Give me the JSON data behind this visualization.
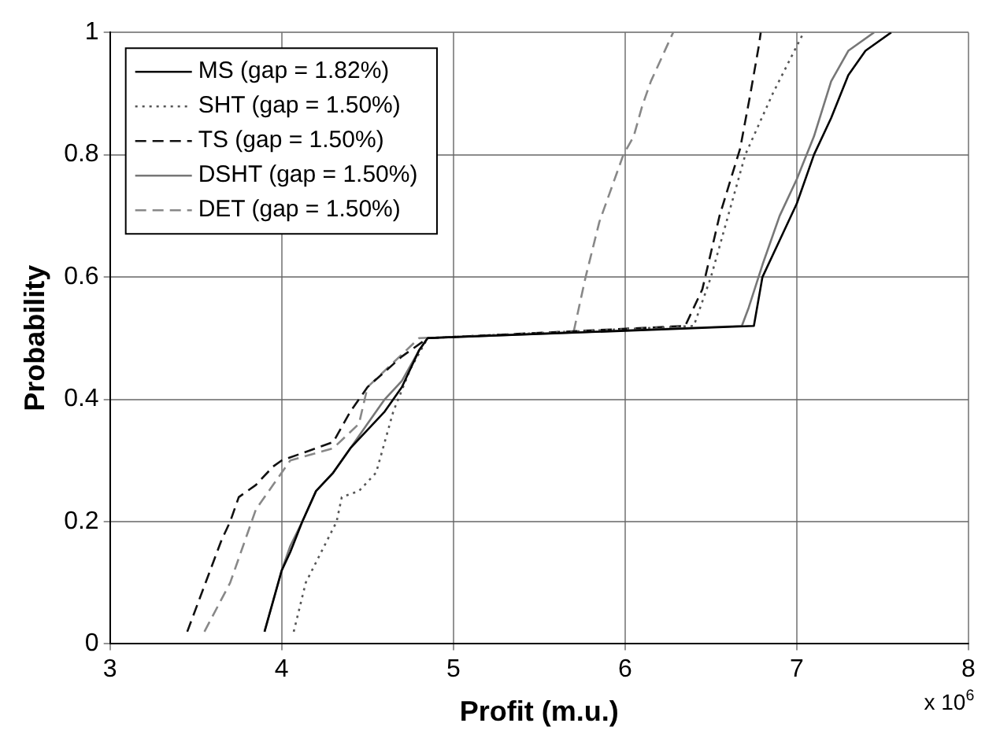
{
  "chart_data": {
    "type": "line",
    "xlabel": "Profit (m.u.)",
    "ylabel": "Probability",
    "annotations": [
      "x 10$^{6}$"
    ],
    "xlim": [
      3,
      8
    ],
    "xticks": [
      3,
      4,
      5,
      6,
      7,
      8
    ],
    "ylim": [
      0,
      1
    ],
    "yticks": [
      0,
      0.2,
      0.4,
      0.6,
      0.8,
      1
    ],
    "grid": true,
    "legend": "top left",
    "marker": "none",
    "series": [
      {
        "name": "MS (gap = 1.82%)",
        "color": "#000000",
        "line_style": "solid",
        "x": [
          3.9,
          4.0,
          4.05,
          4.12,
          4.2,
          4.3,
          4.4,
          4.5,
          4.6,
          4.7,
          4.8,
          4.85,
          6.75,
          6.8,
          6.9,
          7.0,
          7.1,
          7.2,
          7.3,
          7.4,
          7.55
        ],
        "values": [
          0.02,
          0.12,
          0.15,
          0.2,
          0.25,
          0.28,
          0.32,
          0.35,
          0.38,
          0.42,
          0.48,
          0.5,
          0.52,
          0.6,
          0.66,
          0.72,
          0.8,
          0.86,
          0.93,
          0.97,
          1
        ]
      },
      {
        "name": "SHT (gap = 1.50%)",
        "color": "#555555",
        "line_style": "dotted",
        "x": [
          4.07,
          4.14,
          4.32,
          4.35,
          4.45,
          4.55,
          4.6,
          4.65,
          4.75,
          4.85,
          6.4,
          6.5,
          6.6,
          6.7,
          6.86,
          7.04
        ],
        "values": [
          0.02,
          0.1,
          0.2,
          0.24,
          0.25,
          0.28,
          0.33,
          0.38,
          0.45,
          0.5,
          0.52,
          0.6,
          0.7,
          0.8,
          0.9,
          1
        ]
      },
      {
        "name": "TS (gap = 1.50%)",
        "color": "#111111",
        "line_style": "dashed",
        "x": [
          3.45,
          3.65,
          3.7,
          3.75,
          3.85,
          3.95,
          4.0,
          4.3,
          4.4,
          4.5,
          4.7,
          4.85,
          6.35,
          6.45,
          6.55,
          6.67,
          6.73,
          6.78,
          6.79
        ],
        "values": [
          0.02,
          0.17,
          0.2,
          0.24,
          0.26,
          0.29,
          0.3,
          0.33,
          0.38,
          0.42,
          0.47,
          0.5,
          0.52,
          0.58,
          0.7,
          0.81,
          0.9,
          0.98,
          1
        ]
      },
      {
        "name": "DSHT (gap = 1.50%)",
        "color": "#777777",
        "line_style": "solid",
        "x": [
          3.9,
          4.0,
          4.05,
          4.12,
          4.2,
          4.3,
          4.4,
          4.5,
          4.6,
          4.7,
          4.8,
          4.85,
          6.68,
          6.72,
          6.8,
          6.9,
          7.0,
          7.1,
          7.2,
          7.3,
          7.45
        ],
        "values": [
          0.02,
          0.12,
          0.16,
          0.2,
          0.25,
          0.28,
          0.32,
          0.36,
          0.4,
          0.43,
          0.48,
          0.5,
          0.52,
          0.55,
          0.62,
          0.7,
          0.76,
          0.83,
          0.92,
          0.97,
          1
        ]
      },
      {
        "name": "DET (gap = 1.50%)",
        "color": "#888888",
        "line_style": "dashed",
        "x": [
          3.55,
          3.7,
          3.8,
          3.85,
          3.95,
          4.05,
          4.3,
          4.45,
          4.5,
          4.8,
          5.7,
          5.77,
          5.85,
          5.99,
          6.05,
          6.1,
          6.15,
          6.28
        ],
        "values": [
          0.02,
          0.1,
          0.18,
          0.22,
          0.26,
          0.3,
          0.32,
          0.36,
          0.42,
          0.5,
          0.51,
          0.6,
          0.69,
          0.8,
          0.83,
          0.88,
          0.92,
          1
        ]
      }
    ]
  }
}
